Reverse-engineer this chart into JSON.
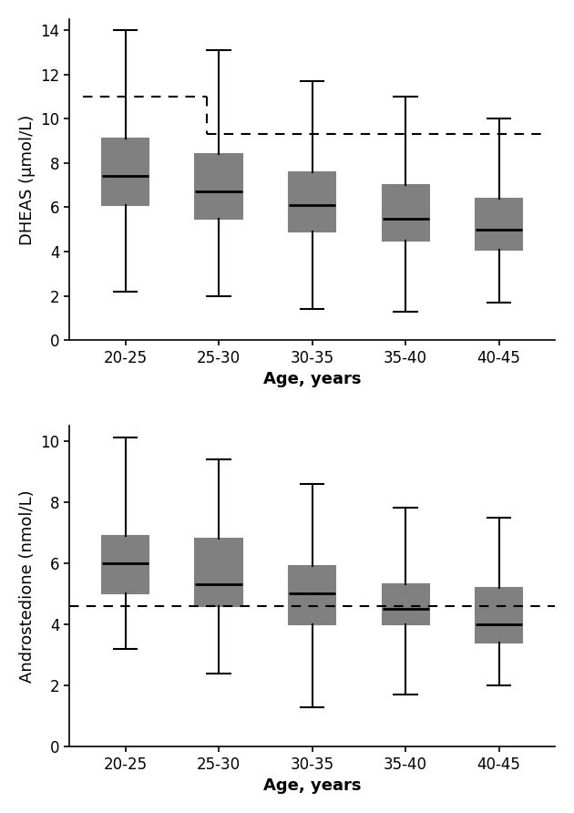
{
  "categories": [
    "20-25",
    "25-30",
    "30-35",
    "35-40",
    "40-45"
  ],
  "dheas": {
    "whisker_low": [
      2.2,
      2.0,
      1.4,
      1.3,
      1.7
    ],
    "q1": [
      6.1,
      5.5,
      4.9,
      4.5,
      4.1
    ],
    "median": [
      7.4,
      6.7,
      6.1,
      5.5,
      5.0
    ],
    "q3": [
      9.1,
      8.4,
      7.6,
      7.0,
      6.4
    ],
    "whisker_high": [
      14.0,
      13.1,
      11.7,
      11.0,
      10.0
    ],
    "ref_line_y": [
      11.0,
      11.0,
      9.3,
      9.3
    ],
    "ylabel": "DHEAS (μmol/L)",
    "ylim": [
      0,
      14.5
    ],
    "yticks": [
      0,
      2,
      4,
      6,
      8,
      10,
      12,
      14
    ]
  },
  "andro": {
    "whisker_low": [
      3.2,
      2.4,
      1.3,
      1.7,
      2.0
    ],
    "q1": [
      5.0,
      4.6,
      4.0,
      4.0,
      3.4
    ],
    "median": [
      6.0,
      5.3,
      5.0,
      4.5,
      4.0
    ],
    "q3": [
      6.9,
      6.8,
      5.9,
      5.3,
      5.2
    ],
    "whisker_high": [
      10.1,
      9.4,
      8.6,
      7.8,
      7.5
    ],
    "ref_line_y": 4.6,
    "ylabel": "Androstedione (nmol/L)",
    "ylim": [
      0,
      10.5
    ],
    "yticks": [
      0,
      2,
      4,
      6,
      8,
      10
    ]
  },
  "xlabel": "Age, years",
  "box_color": "#808080",
  "box_facecolor": "#808080",
  "median_color": "#000000",
  "whisker_color": "#000000",
  "dashed_color": "#000000",
  "box_width": 0.5,
  "linewidth": 1.5,
  "median_linewidth": 2.0
}
